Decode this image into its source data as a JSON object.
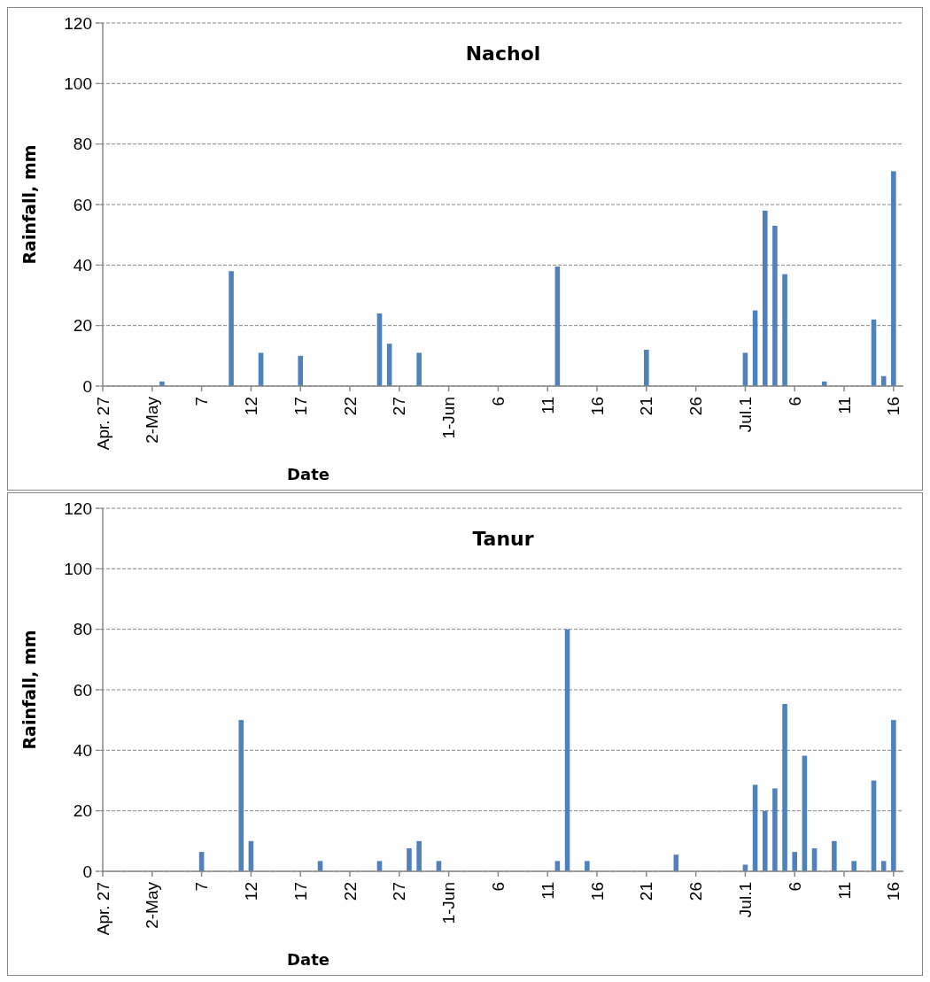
{
  "chart_data": [
    {
      "type": "bar",
      "title": "Nachol",
      "xlabel": "Date",
      "ylabel": "Rainfall, mm",
      "grid": "y",
      "ylim": [
        0,
        120
      ],
      "yticks": [
        0,
        20,
        40,
        60,
        80,
        100,
        120
      ],
      "xlim": [
        "--04-27",
        "--07-17"
      ],
      "xticks": [
        {
          "value": "--04-27",
          "label": "Apr. 27"
        },
        {
          "value": "--05-02",
          "label": "2-May"
        },
        {
          "value": "--05-07",
          "label": "7"
        },
        {
          "value": "--05-12",
          "label": "12"
        },
        {
          "value": "--05-17",
          "label": "17"
        },
        {
          "value": "--05-22",
          "label": "22"
        },
        {
          "value": "--05-27",
          "label": "27"
        },
        {
          "value": "--06-01",
          "label": "1-Jun"
        },
        {
          "value": "--06-06",
          "label": "6"
        },
        {
          "value": "--06-11",
          "label": "11"
        },
        {
          "value": "--06-16",
          "label": "16"
        },
        {
          "value": "--06-21",
          "label": "21"
        },
        {
          "value": "--06-26",
          "label": "26"
        },
        {
          "value": "--07-01",
          "label": "Jul.1"
        },
        {
          "value": "--07-06",
          "label": "6"
        },
        {
          "value": "--07-11",
          "label": "11"
        },
        {
          "value": "--07-16",
          "label": "16"
        }
      ],
      "series": [
        {
          "color": "#4f81bd",
          "x": [
            "--05-03",
            "--05-10",
            "--05-13",
            "--05-17",
            "--05-25",
            "--05-26",
            "--05-29",
            "--06-12",
            "--06-21",
            "--07-01",
            "--07-02",
            "--07-03",
            "--07-04",
            "--07-05",
            "--07-09",
            "--07-14",
            "--07-15",
            "--07-16"
          ],
          "values": [
            1.5,
            38,
            11,
            10,
            24,
            14,
            11,
            39.5,
            12,
            11,
            25,
            58,
            53,
            37,
            1.5,
            22,
            3.3,
            71
          ]
        }
      ]
    },
    {
      "type": "bar",
      "title": "Tanur",
      "xlabel": "Date",
      "ylabel": "Rainfall, mm",
      "grid": "y",
      "ylim": [
        0,
        120
      ],
      "yticks": [
        0,
        20,
        40,
        60,
        80,
        100,
        120
      ],
      "xlim": [
        "--04-27",
        "--07-17"
      ],
      "xticks": [
        {
          "value": "--04-27",
          "label": "Apr. 27"
        },
        {
          "value": "--05-02",
          "label": "2-May"
        },
        {
          "value": "--05-07",
          "label": "7"
        },
        {
          "value": "--05-12",
          "label": "12"
        },
        {
          "value": "--05-17",
          "label": "17"
        },
        {
          "value": "--05-22",
          "label": "22"
        },
        {
          "value": "--05-27",
          "label": "27"
        },
        {
          "value": "--06-01",
          "label": "1-Jun"
        },
        {
          "value": "--06-06",
          "label": "6"
        },
        {
          "value": "--06-11",
          "label": "11"
        },
        {
          "value": "--06-16",
          "label": "16"
        },
        {
          "value": "--06-21",
          "label": "21"
        },
        {
          "value": "--06-26",
          "label": "26"
        },
        {
          "value": "--07-01",
          "label": "Jul.1"
        },
        {
          "value": "--07-06",
          "label": "6"
        },
        {
          "value": "--07-11",
          "label": "11"
        },
        {
          "value": "--07-16",
          "label": "16"
        }
      ],
      "series": [
        {
          "color": "#4f81bd",
          "x": [
            "--05-07",
            "--05-11",
            "--05-12",
            "--05-19",
            "--05-25",
            "--05-28",
            "--05-29",
            "--05-31",
            "--06-12",
            "--06-13",
            "--06-15",
            "--06-24",
            "--07-01",
            "--07-02",
            "--07-03",
            "--07-04",
            "--07-05",
            "--07-06",
            "--07-07",
            "--07-08",
            "--07-10",
            "--07-12",
            "--07-14",
            "--07-15",
            "--07-16"
          ],
          "values": [
            6.4,
            50,
            10,
            3.4,
            3.4,
            7.6,
            10,
            3.4,
            3.4,
            80,
            3.4,
            5.5,
            2.2,
            28.6,
            20,
            27.4,
            55.3,
            6.4,
            38.2,
            7.6,
            10,
            3.4,
            30,
            3.4,
            50
          ]
        }
      ]
    }
  ]
}
